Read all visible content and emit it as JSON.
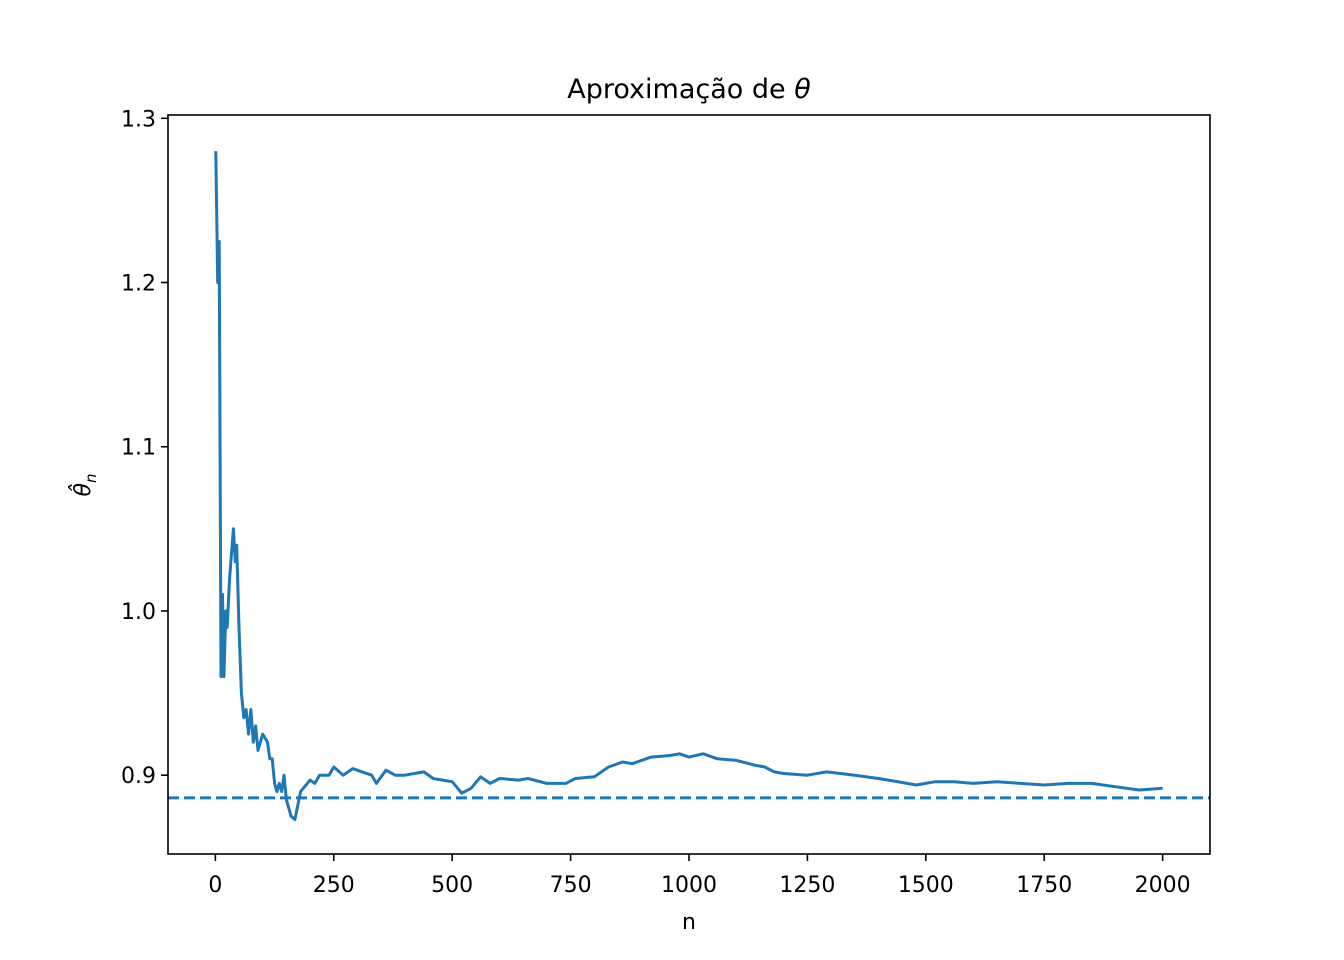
{
  "chart_data": {
    "type": "line",
    "title": "Aproximação de ",
    "title_symbol": "θ",
    "xlabel": "n",
    "ylabel_symbol": "θ̂",
    "ylabel_subscript": "n",
    "xlim": [
      -100,
      2100
    ],
    "ylim": [
      0.852,
      1.302
    ],
    "xticks": [
      0,
      250,
      500,
      750,
      1000,
      1250,
      1500,
      1750,
      2000
    ],
    "xtick_labels": [
      "0",
      "250",
      "500",
      "750",
      "1000",
      "1250",
      "1500",
      "1750",
      "2000"
    ],
    "yticks": [
      0.9,
      1.0,
      1.1,
      1.2,
      1.3
    ],
    "ytick_labels": [
      "0.9",
      "1.0",
      "1.1",
      "1.2",
      "1.3"
    ],
    "grid": false,
    "line_color": "#1f77b4",
    "reference_line": {
      "y": 0.8862,
      "style": "dashed",
      "color": "#1f77b4"
    },
    "series": [
      {
        "x": [
          1,
          5,
          8,
          12,
          15,
          18,
          22,
          25,
          30,
          38,
          42,
          45,
          50,
          55,
          60,
          65,
          70,
          75,
          80,
          85,
          90,
          100,
          110,
          115,
          120,
          125,
          130,
          135,
          140,
          145,
          150,
          160,
          168,
          180,
          200,
          210,
          220,
          240,
          250,
          270,
          290,
          310,
          330,
          340,
          360,
          380,
          400,
          420,
          440,
          460,
          480,
          500,
          520,
          540,
          560,
          580,
          600,
          640,
          660,
          700,
          740,
          760,
          800,
          830,
          860,
          880,
          920,
          960,
          980,
          1000,
          1030,
          1060,
          1100,
          1140,
          1160,
          1180,
          1200,
          1250,
          1290,
          1320,
          1350,
          1400,
          1440,
          1480,
          1520,
          1560,
          1600,
          1650,
          1700,
          1750,
          1800,
          1850,
          1900,
          1950,
          2000
        ],
        "y": [
          1.28,
          1.2,
          1.225,
          0.96,
          1.01,
          0.96,
          1.0,
          0.99,
          1.02,
          1.05,
          1.03,
          1.04,
          0.99,
          0.95,
          0.935,
          0.94,
          0.925,
          0.94,
          0.92,
          0.93,
          0.915,
          0.925,
          0.92,
          0.91,
          0.91,
          0.895,
          0.89,
          0.895,
          0.89,
          0.9,
          0.885,
          0.875,
          0.873,
          0.89,
          0.897,
          0.895,
          0.9,
          0.9,
          0.905,
          0.9,
          0.904,
          0.902,
          0.9,
          0.895,
          0.903,
          0.9,
          0.9,
          0.901,
          0.902,
          0.898,
          0.897,
          0.896,
          0.889,
          0.892,
          0.899,
          0.895,
          0.898,
          0.897,
          0.898,
          0.895,
          0.895,
          0.898,
          0.899,
          0.905,
          0.908,
          0.907,
          0.911,
          0.912,
          0.913,
          0.911,
          0.913,
          0.91,
          0.909,
          0.906,
          0.905,
          0.902,
          0.901,
          0.9,
          0.902,
          0.901,
          0.9,
          0.898,
          0.896,
          0.894,
          0.896,
          0.896,
          0.895,
          0.896,
          0.895,
          0.894,
          0.895,
          0.895,
          0.893,
          0.891,
          0.892
        ]
      }
    ]
  }
}
